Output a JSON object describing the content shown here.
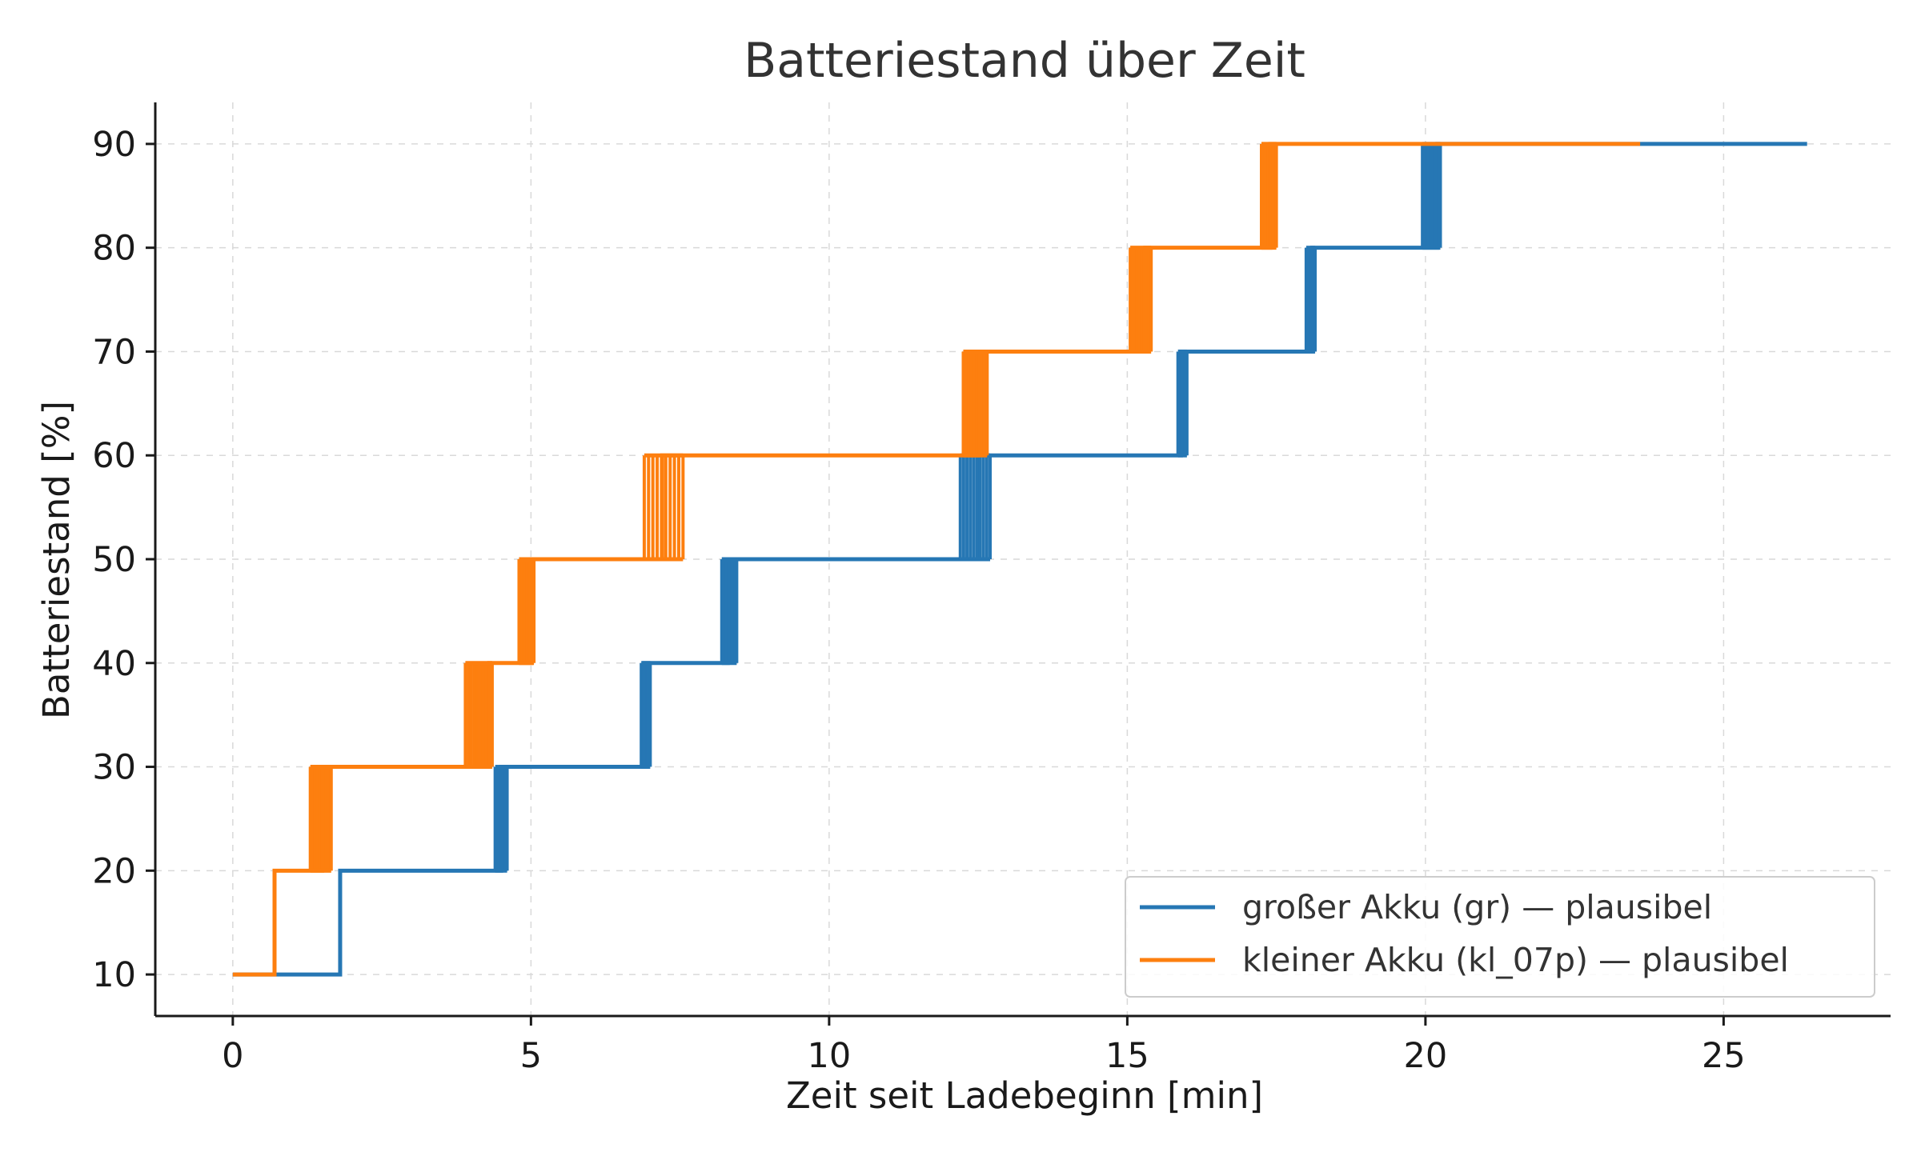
{
  "chart_data": {
    "type": "line",
    "title": "Batteriestand über Zeit",
    "xlabel": "Zeit seit Ladebeginn [min]",
    "ylabel": "Batteriestand [%]",
    "xlim": [
      -1.3,
      27.8
    ],
    "ylim": [
      6,
      94
    ],
    "xticks": [
      0,
      5,
      10,
      15,
      20,
      25
    ],
    "yticks": [
      10,
      20,
      30,
      40,
      50,
      60,
      70,
      80,
      90
    ],
    "grid": true,
    "legend_position": "lower-right",
    "series": [
      {
        "name": "großer Akku (gr) — plausibel",
        "color": "#2677b4",
        "step": "post",
        "x": [
          0,
          1.8,
          4.5,
          6.9,
          8.3,
          12.5,
          15.9,
          18.1,
          20.2,
          26.4
        ],
        "y": [
          10,
          20,
          30,
          40,
          50,
          60,
          70,
          80,
          90,
          90
        ],
        "jitter": [
          {
            "level": 20,
            "from": 4.4,
            "to": 4.6
          },
          {
            "level": 30,
            "from": 6.85,
            "to": 7.0
          },
          {
            "level": 40,
            "from": 8.2,
            "to": 8.45
          },
          {
            "level": 50,
            "from": 12.2,
            "to": 12.7
          },
          {
            "level": 60,
            "from": 15.85,
            "to": 16.0
          },
          {
            "level": 70,
            "from": 18.0,
            "to": 18.15
          },
          {
            "level": 80,
            "from": 19.95,
            "to": 20.25
          }
        ]
      },
      {
        "name": "kleiner Akku (kl_07p) — plausibel",
        "color": "#fd7f0f",
        "step": "post",
        "x": [
          0,
          0.7,
          1.5,
          4.3,
          5.0,
          7.2,
          12.5,
          15.3,
          17.4,
          23.6
        ],
        "y": [
          10,
          20,
          30,
          40,
          50,
          60,
          70,
          80,
          90,
          90
        ],
        "jitter": [
          {
            "level": 20,
            "from": 1.3,
            "to": 1.65
          },
          {
            "level": 30,
            "from": 3.9,
            "to": 4.35
          },
          {
            "level": 40,
            "from": 4.8,
            "to": 5.05
          },
          {
            "level": 50,
            "from": 6.9,
            "to": 7.55
          },
          {
            "level": 60,
            "from": 12.25,
            "to": 12.65
          },
          {
            "level": 70,
            "from": 15.05,
            "to": 15.4
          },
          {
            "level": 80,
            "from": 17.25,
            "to": 17.5
          }
        ]
      }
    ]
  }
}
